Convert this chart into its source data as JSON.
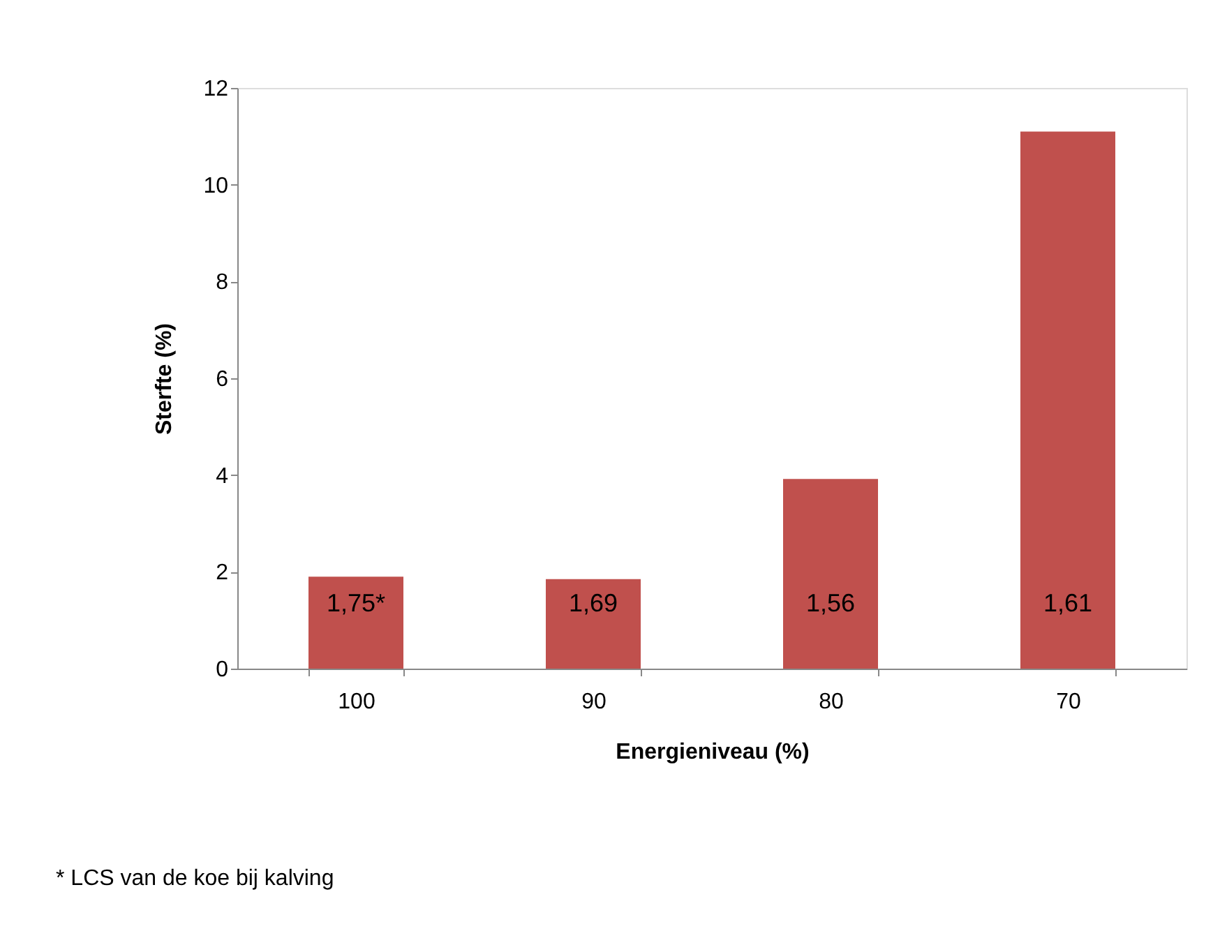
{
  "chart_data": {
    "type": "bar",
    "xlabel": "Energieniveau (%)",
    "ylabel": "Sterfte (%)",
    "categories": [
      "100",
      "90",
      "80",
      "70"
    ],
    "values": [
      1.9,
      1.85,
      3.92,
      11.1
    ],
    "color": "#c0504d",
    "ylim": [
      0,
      12
    ],
    "yticks": [
      0,
      2,
      4,
      6,
      8,
      10,
      12
    ],
    "grid": false,
    "annotations": [
      "1,75*",
      "1,69",
      "1,56",
      "1,61",
      "* LCS van de koe bij kalving"
    ]
  }
}
